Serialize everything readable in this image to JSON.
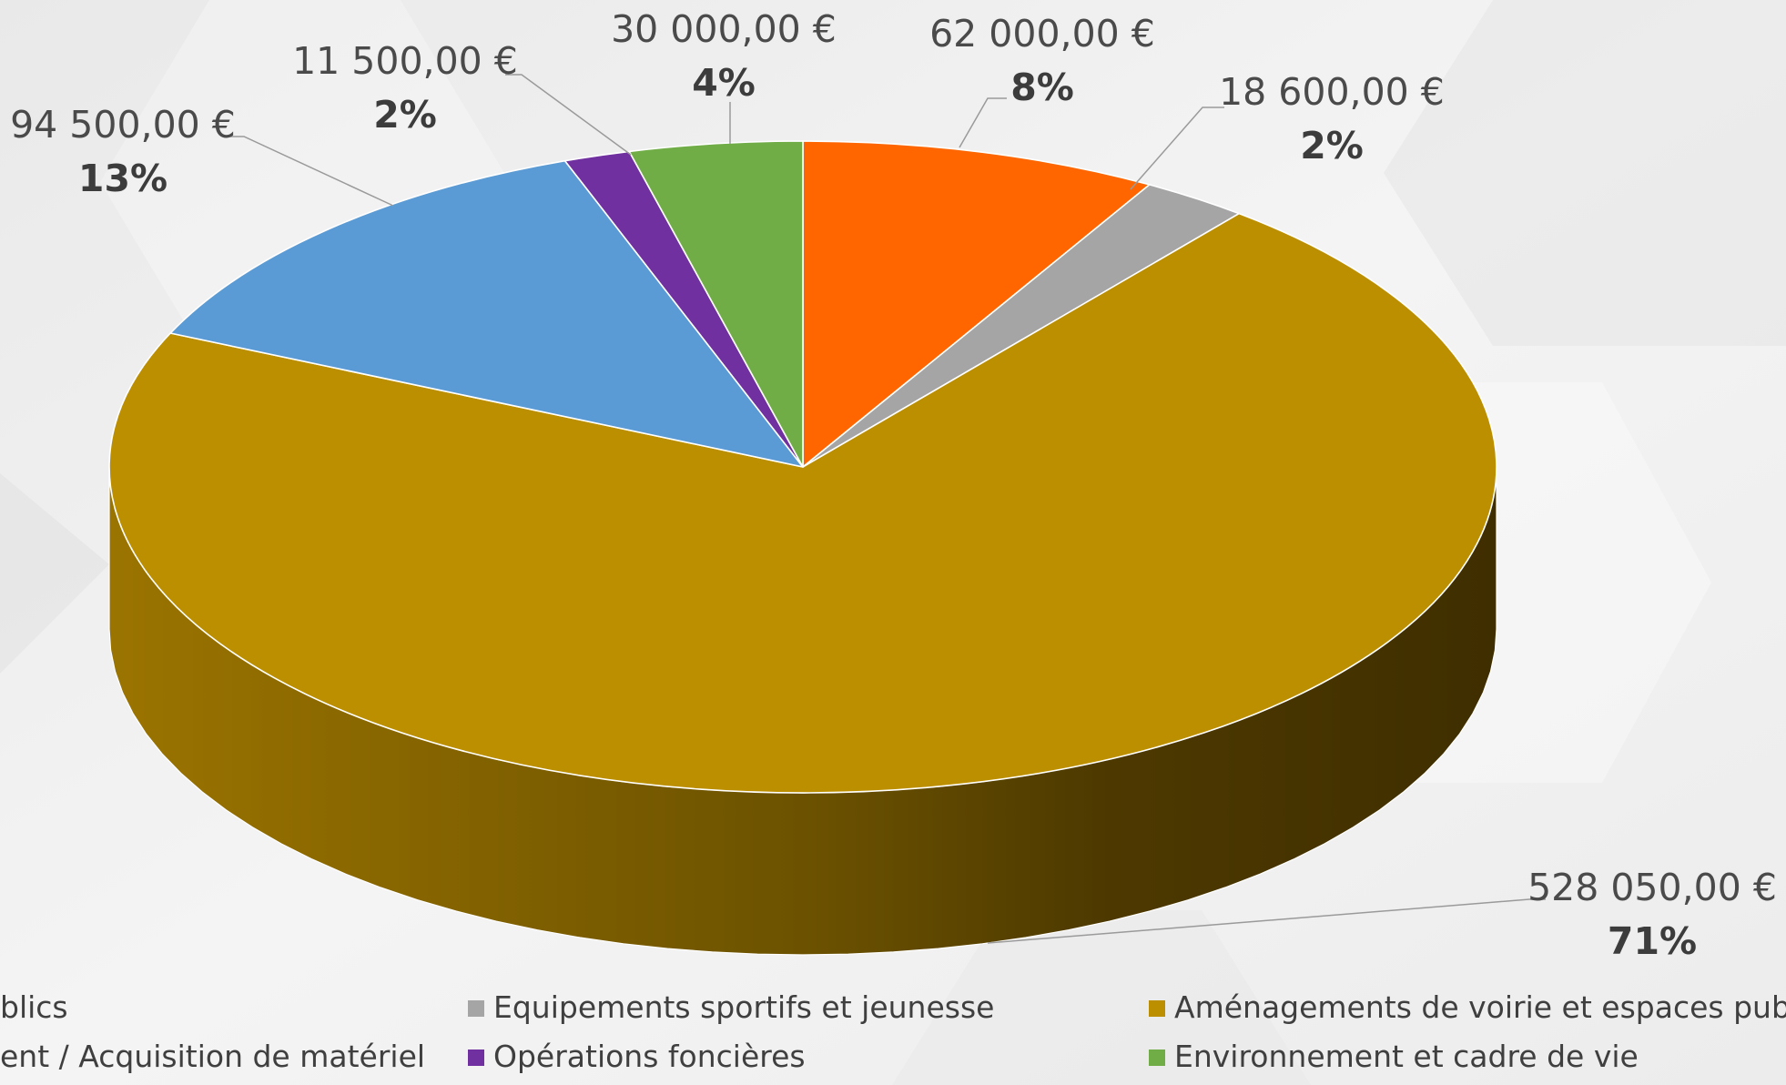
{
  "chart_data": {
    "type": "pie",
    "style": "3d",
    "legend_position": "bottom",
    "slices": [
      {
        "name": "…blics",
        "value": 62000,
        "value_label": "62 000,00 €",
        "percent_label": "8%",
        "color": "#FF6600"
      },
      {
        "name": "Equipements sportifs et jeunesse",
        "value": 18600,
        "value_label": "18 600,00 €",
        "percent_label": "2%",
        "color": "#A5A5A5"
      },
      {
        "name": "Aménagements de voirie et espaces publics",
        "value": 528050,
        "value_label": "528 050,00 €",
        "percent_label": "71%",
        "color": "#BC8F00"
      },
      {
        "name": "…ent / Acquisition de matériel",
        "value": 94500,
        "value_label": "94 500,00 €",
        "percent_label": "13%",
        "color": "#5B9BD5"
      },
      {
        "name": "Opérations foncières",
        "value": 11500,
        "value_label": "11 500,00 €",
        "percent_label": "2%",
        "color": "#7030A0"
      },
      {
        "name": "Environnement et cadre de vie",
        "value": 30000,
        "value_label": "30 000,00 €",
        "percent_label": "4%",
        "color": "#70AD47"
      }
    ],
    "legend": [
      {
        "label": "blics",
        "color": "#FF6600"
      },
      {
        "label": "Equipements sportifs et jeunesse",
        "color": "#A5A5A5"
      },
      {
        "label": "Aménagements de voirie et espaces publics",
        "color": "#BC8F00"
      },
      {
        "label": "ent / Acquisition de matériel",
        "color": "#5B9BD5"
      },
      {
        "label": "Opérations foncières",
        "color": "#7030A0"
      },
      {
        "label": "Environnement et cadre de vie",
        "color": "#70AD47"
      }
    ]
  }
}
